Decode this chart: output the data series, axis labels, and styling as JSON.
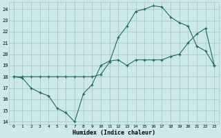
{
  "xlabel": "Humidex (Indice chaleur)",
  "background_color": "#cde8e8",
  "grid_color": "#a8c8c8",
  "line_color": "#1a6b5a",
  "xlim": [
    -0.5,
    23.5
  ],
  "ylim": [
    13.8,
    24.6
  ],
  "yticks": [
    14,
    15,
    16,
    17,
    18,
    19,
    20,
    21,
    22,
    23,
    24
  ],
  "xticks": [
    0,
    1,
    2,
    3,
    4,
    5,
    6,
    7,
    8,
    9,
    10,
    11,
    12,
    13,
    14,
    15,
    16,
    17,
    18,
    19,
    20,
    21,
    22,
    23
  ],
  "line1_x": [
    0,
    1,
    2,
    3,
    4,
    5,
    6,
    7,
    8,
    9,
    10,
    11,
    12,
    13,
    14,
    15,
    16,
    17,
    18,
    19,
    20,
    21,
    22,
    23
  ],
  "line1_y": [
    18.0,
    17.9,
    17.0,
    16.6,
    16.3,
    15.2,
    14.8,
    14.0,
    16.5,
    17.3,
    19.0,
    19.4,
    19.5,
    19.0,
    19.5,
    19.5,
    19.5,
    19.5,
    19.8,
    20.0,
    21.0,
    21.8,
    22.3,
    19.0
  ],
  "line2_x": [
    0,
    1,
    2,
    3,
    4,
    5,
    6,
    7,
    8,
    9,
    10,
    11,
    12,
    13,
    14,
    15,
    16,
    17,
    18,
    19,
    20,
    21,
    22,
    23
  ],
  "line2_y": [
    18.0,
    18.0,
    18.0,
    18.0,
    18.0,
    18.0,
    18.0,
    18.0,
    18.0,
    18.0,
    18.2,
    19.3,
    21.5,
    22.5,
    23.8,
    24.0,
    24.3,
    24.2,
    23.3,
    22.8,
    22.5,
    20.7,
    20.3,
    19.0
  ]
}
